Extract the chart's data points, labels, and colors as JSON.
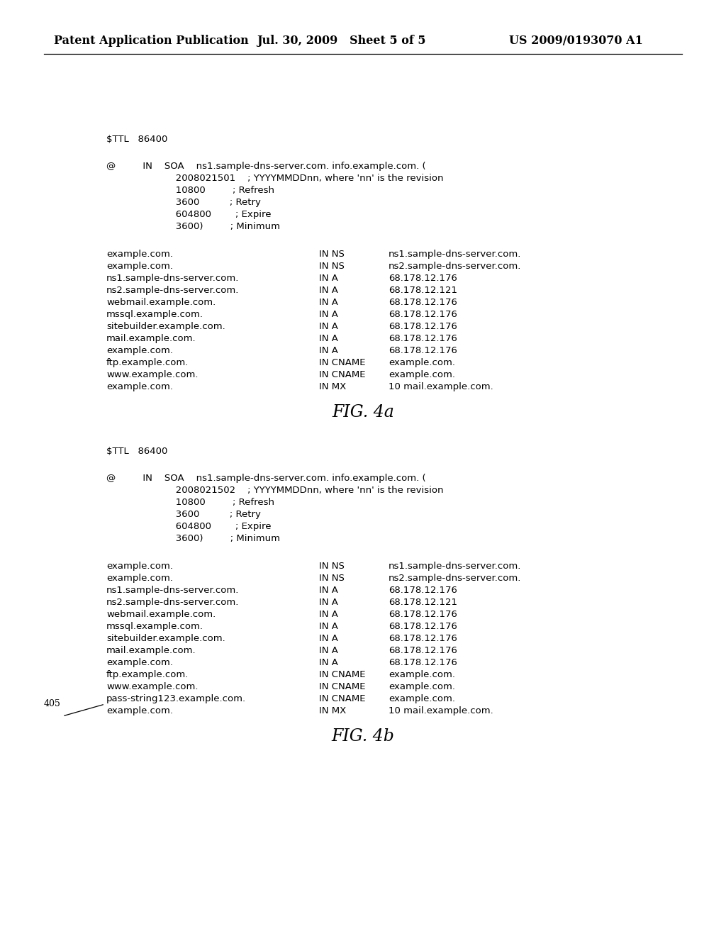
{
  "header_left": "Patent Application Publication",
  "header_mid": "Jul. 30, 2009   Sheet 5 of 5",
  "header_right": "US 2009/0193070 A1",
  "bg_color": "#ffffff",
  "fig4a_label": "FIG. 4a",
  "fig4b_label": "FIG. 4b",
  "fig4a_ttl": "$TTL   86400",
  "fig4a_soa": [
    "@         IN    SOA    ns1.sample-dns-server.com. info.example.com. (",
    "                       2008021501    ; YYYYMMDDnn, where 'nn' is the revision",
    "                       10800         ; Refresh",
    "                       3600          ; Retry",
    "                       604800        ; Expire",
    "                       3600)         ; Minimum"
  ],
  "fig4a_records": [
    [
      "example.com.",
      "IN NS",
      "ns1.sample-dns-server.com."
    ],
    [
      "example.com.",
      "IN NS",
      "ns2.sample-dns-server.com."
    ],
    [
      "ns1.sample-dns-server.com.",
      "IN A",
      "68.178.12.176"
    ],
    [
      "ns2.sample-dns-server.com.",
      "IN A",
      "68.178.12.121"
    ],
    [
      "webmail.example.com.",
      "IN A",
      "68.178.12.176"
    ],
    [
      "mssql.example.com.",
      "IN A",
      "68.178.12.176"
    ],
    [
      "sitebuilder.example.com.",
      "IN A",
      "68.178.12.176"
    ],
    [
      "mail.example.com.",
      "IN A",
      "68.178.12.176"
    ],
    [
      "example.com.",
      "IN A",
      "68.178.12.176"
    ],
    [
      "ftp.example.com.",
      "IN CNAME",
      "example.com."
    ],
    [
      "www.example.com.",
      "IN CNAME",
      "example.com."
    ],
    [
      "example.com.",
      "IN MX",
      "10 mail.example.com."
    ]
  ],
  "fig4b_ttl": "$TTL   86400",
  "fig4b_soa": [
    "@         IN    SOA    ns1.sample-dns-server.com. info.example.com. (",
    "                       2008021502    ; YYYYMMDDnn, where 'nn' is the revision",
    "                       10800         ; Refresh",
    "                       3600          ; Retry",
    "                       604800        ; Expire",
    "                       3600)         ; Minimum"
  ],
  "fig4b_records": [
    [
      "example.com.",
      "IN NS",
      "ns1.sample-dns-server.com."
    ],
    [
      "example.com.",
      "IN NS",
      "ns2.sample-dns-server.com."
    ],
    [
      "ns1.sample-dns-server.com.",
      "IN A",
      "68.178.12.176"
    ],
    [
      "ns2.sample-dns-server.com.",
      "IN A",
      "68.178.12.121"
    ],
    [
      "webmail.example.com.",
      "IN A",
      "68.178.12.176"
    ],
    [
      "mssql.example.com.",
      "IN A",
      "68.178.12.176"
    ],
    [
      "sitebuilder.example.com.",
      "IN A",
      "68.178.12.176"
    ],
    [
      "mail.example.com.",
      "IN A",
      "68.178.12.176"
    ],
    [
      "example.com.",
      "IN A",
      "68.178.12.176"
    ],
    [
      "ftp.example.com.",
      "IN CNAME",
      "example.com."
    ],
    [
      "www.example.com.",
      "IN CNAME",
      "example.com."
    ],
    [
      "pass-string123.example.com.",
      "IN CNAME",
      "example.com."
    ],
    [
      "example.com.",
      "IN MX",
      "10 mail.example.com."
    ]
  ],
  "annotation_405": "405",
  "mono_font": "Courier New",
  "header_font": "DejaVu Serif",
  "fig_label_font": "DejaVu Serif",
  "header_fontsize": 11.5,
  "mono_fontsize": 9.5,
  "fig_label_fontsize": 17
}
